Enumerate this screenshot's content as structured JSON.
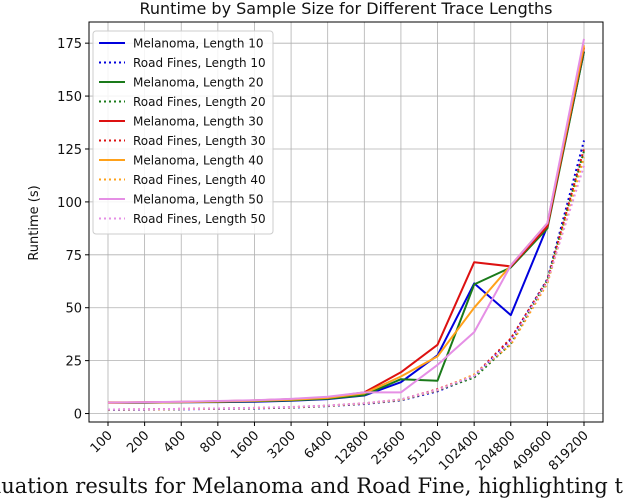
{
  "chart_data": {
    "type": "line",
    "title": "Runtime by Sample Size for Different Trace Lengths",
    "xlabel": "",
    "ylabel": "Runtime (s)",
    "categories": [
      "100",
      "200",
      "400",
      "800",
      "1600",
      "3200",
      "6400",
      "12800",
      "25600",
      "51200",
      "102400",
      "204800",
      "409600",
      "819200"
    ],
    "ylim": [
      -4,
      185
    ],
    "yticks": [
      0,
      25,
      50,
      75,
      100,
      125,
      150,
      175
    ],
    "grid": true,
    "legend_position": "top-left",
    "series": [
      {
        "name": "Melanoma, Length 10",
        "color": "#0000dd",
        "style": "solid",
        "values": [
          5.0,
          5.1,
          5.3,
          5.4,
          5.6,
          6.0,
          6.8,
          8.5,
          14.8,
          27.5,
          61.5,
          46.5,
          88.5,
          171
        ]
      },
      {
        "name": "Road Fines, Length 10",
        "color": "#0000dd",
        "style": "dotted",
        "values": [
          1.7,
          1.8,
          2.0,
          2.2,
          2.4,
          2.8,
          3.5,
          4.5,
          6.2,
          10.5,
          17.5,
          35.0,
          63.5,
          129
        ]
      },
      {
        "name": "Melanoma, Length 20",
        "color": "#1a7a1a",
        "style": "solid",
        "values": [
          5.0,
          5.1,
          5.3,
          5.5,
          5.8,
          6.2,
          7.0,
          8.7,
          16.2,
          15.5,
          61.0,
          69.0,
          87.5,
          171
        ]
      },
      {
        "name": "Road Fines, Length 20",
        "color": "#1a7a1a",
        "style": "dotted",
        "values": [
          1.8,
          1.9,
          2.1,
          2.3,
          2.5,
          2.9,
          3.6,
          4.7,
          6.4,
          11.0,
          17.0,
          33.0,
          63.0,
          124
        ]
      },
      {
        "name": "Melanoma, Length 30",
        "color": "#dd1111",
        "style": "solid",
        "values": [
          5.2,
          5.3,
          5.5,
          5.8,
          6.2,
          6.8,
          7.6,
          10.0,
          19.5,
          32.5,
          71.5,
          69.5,
          88.5,
          173
        ]
      },
      {
        "name": "Road Fines, Length 30",
        "color": "#dd1111",
        "style": "dotted",
        "values": [
          1.9,
          2.0,
          2.2,
          2.4,
          2.6,
          3.0,
          3.7,
          4.8,
          6.6,
          11.5,
          18.0,
          35.5,
          63.0,
          125
        ]
      },
      {
        "name": "Melanoma, Length 40",
        "color": "#ffa11a",
        "style": "solid",
        "values": [
          5.0,
          5.2,
          5.4,
          5.7,
          6.0,
          6.5,
          7.4,
          9.5,
          17.5,
          27.0,
          50.0,
          70.0,
          90.0,
          174
        ]
      },
      {
        "name": "Road Fines, Length 40",
        "color": "#ffa11a",
        "style": "dotted",
        "values": [
          1.8,
          1.9,
          2.1,
          2.3,
          2.6,
          3.0,
          3.7,
          4.8,
          6.5,
          11.0,
          18.5,
          32.5,
          61.5,
          121
        ]
      },
      {
        "name": "Melanoma, Length 50",
        "color": "#e58fe5",
        "style": "solid",
        "values": [
          5.1,
          5.3,
          5.6,
          5.9,
          6.3,
          6.9,
          7.9,
          10.0,
          10.0,
          23.0,
          38.5,
          70.0,
          90.0,
          177
        ]
      },
      {
        "name": "Road Fines, Length 50",
        "color": "#e58fe5",
        "style": "dotted",
        "values": [
          1.9,
          2.0,
          2.2,
          2.4,
          2.7,
          3.1,
          3.8,
          4.9,
          6.7,
          11.2,
          17.8,
          34.0,
          62.5,
          117
        ]
      }
    ]
  },
  "caption": "aluation results for Melanoma and Road Fine, highlighting t"
}
